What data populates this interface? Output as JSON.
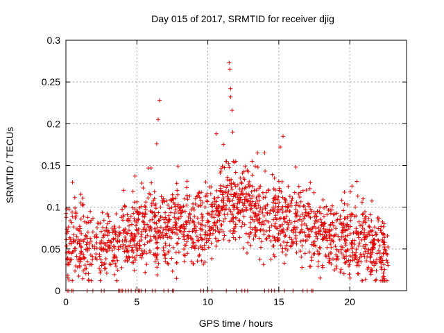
{
  "chart_data": {
    "type": "scatter",
    "title": "Day 015 of 2017, SRMTID for receiver djig",
    "xlabel": "GPS time / hours",
    "ylabel": "SRMTID / TECUs",
    "xlim": [
      0,
      24
    ],
    "ylim": [
      0,
      0.3
    ],
    "xticks": [
      0,
      5,
      10,
      15,
      20
    ],
    "yticks": [
      0,
      0.05,
      0.1,
      0.15,
      0.2,
      0.25,
      0.3
    ],
    "xtick_labels": [
      "0",
      "5",
      "10",
      "15",
      "20"
    ],
    "ytick_labels": [
      "0",
      "0.05",
      "0.1",
      "0.15",
      "0.2",
      "0.25",
      "0.3"
    ],
    "grid": true,
    "marker": "+",
    "color": "#e00000",
    "series": [
      {
        "name": "SRMTID",
        "x_range": [
          0,
          22.7
        ],
        "baseline_profile": [
          {
            "x": 0.0,
            "y": 0.06
          },
          {
            "x": 2.0,
            "y": 0.05
          },
          {
            "x": 4.0,
            "y": 0.065
          },
          {
            "x": 6.0,
            "y": 0.075
          },
          {
            "x": 8.0,
            "y": 0.078
          },
          {
            "x": 10.0,
            "y": 0.082
          },
          {
            "x": 11.0,
            "y": 0.11
          },
          {
            "x": 12.0,
            "y": 0.105
          },
          {
            "x": 13.0,
            "y": 0.095
          },
          {
            "x": 15.0,
            "y": 0.085
          },
          {
            "x": 17.0,
            "y": 0.075
          },
          {
            "x": 19.0,
            "y": 0.065
          },
          {
            "x": 21.0,
            "y": 0.06
          },
          {
            "x": 22.0,
            "y": 0.045
          },
          {
            "x": 22.7,
            "y": 0.04
          }
        ],
        "peaks": [
          {
            "x": 6.6,
            "y": 0.228
          },
          {
            "x": 6.5,
            "y": 0.205
          },
          {
            "x": 6.4,
            "y": 0.176
          },
          {
            "x": 10.6,
            "y": 0.188
          },
          {
            "x": 11.5,
            "y": 0.273
          },
          {
            "x": 11.55,
            "y": 0.265
          },
          {
            "x": 11.6,
            "y": 0.242
          },
          {
            "x": 11.6,
            "y": 0.232
          },
          {
            "x": 11.7,
            "y": 0.216
          },
          {
            "x": 11.75,
            "y": 0.19
          },
          {
            "x": 11.1,
            "y": 0.175
          },
          {
            "x": 15.3,
            "y": 0.185
          },
          {
            "x": 15.1,
            "y": 0.172
          },
          {
            "x": 14.0,
            "y": 0.165
          },
          {
            "x": 13.5,
            "y": 0.165
          },
          {
            "x": 16.2,
            "y": 0.148
          },
          {
            "x": 7.9,
            "y": 0.149
          },
          {
            "x": 6.0,
            "y": 0.147
          }
        ],
        "zero_points_x": [
          0.1,
          0.2,
          0.4,
          0.5,
          1.5,
          1.9,
          2.5,
          2.7,
          3.7,
          3.8,
          3.9,
          4.0,
          4.2,
          4.4,
          4.6,
          4.9,
          5.1,
          5.2,
          5.3,
          5.6,
          6.1,
          6.3,
          6.9,
          7.2,
          7.5,
          7.6,
          9.5,
          9.7,
          10.0,
          10.3,
          11.3,
          12.0,
          12.4,
          12.6,
          12.8,
          14.0,
          14.3,
          14.5,
          14.7,
          15.0,
          15.4,
          16.0,
          16.7,
          17.0,
          17.3,
          17.4
        ]
      }
    ]
  }
}
